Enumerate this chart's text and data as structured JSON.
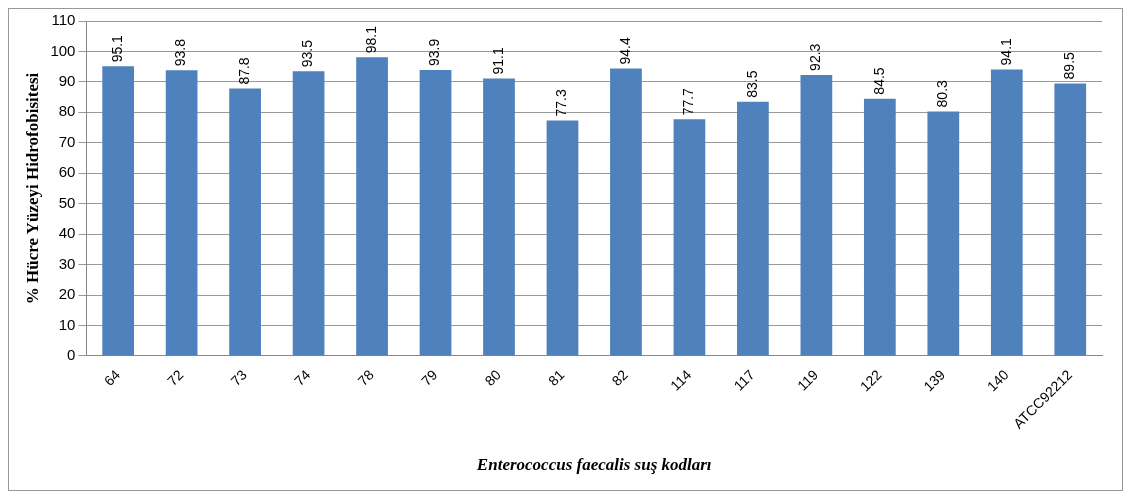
{
  "chart_data": {
    "type": "bar",
    "ylabel": "% Hücre Yüzeyi Hidrofobisitesi",
    "xlabel": "Enterococcus faecalis suş kodları",
    "categories": [
      "64",
      "72",
      "73",
      "74",
      "78",
      "79",
      "80",
      "81",
      "82",
      "114",
      "117",
      "119",
      "122",
      "139",
      "140",
      "ATCC92212"
    ],
    "values": [
      95.1,
      93.8,
      87.8,
      93.5,
      98.1,
      93.9,
      91.1,
      77.3,
      94.4,
      77.7,
      83.5,
      92.3,
      84.5,
      80.3,
      94.1,
      89.5
    ],
    "color": "#4f81bd",
    "ylim": [
      0,
      110
    ],
    "yticks": [
      0,
      10,
      20,
      30,
      40,
      50,
      60,
      70,
      80,
      90,
      100,
      110
    ],
    "grid": "y",
    "data_labels": true,
    "legend": false
  }
}
